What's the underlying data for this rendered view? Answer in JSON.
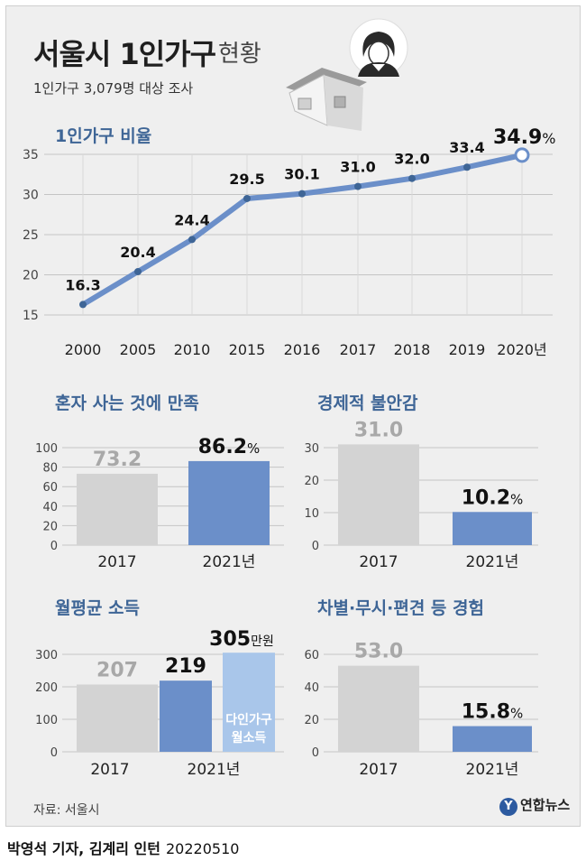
{
  "header": {
    "title_main": "서울시 1인가구",
    "title_sub": "현황",
    "survey_note": "1인가구 3,079명 대상 조사"
  },
  "illustration": {
    "icons": [
      "house-icon",
      "person-avatar-icon"
    ]
  },
  "colors": {
    "accent": "#6b8fc9",
    "light_accent": "#a9c6ea",
    "gray_bar": "#d3d3d3",
    "title_blue": "#3e6596"
  },
  "line_chart": {
    "title": "1인가구 비율",
    "last_label": "34.9",
    "last_unit": "%"
  },
  "footer": {
    "source": "자료: 서울시",
    "logo": "연합뉴스",
    "credit": "박영석 기자, 김계리 인턴",
    "date": "20220510"
  },
  "chart_data": [
    {
      "type": "line",
      "title": "1인가구 비율",
      "x": [
        "2000",
        "2005",
        "2010",
        "2015",
        "2016",
        "2017",
        "2018",
        "2019",
        "2020년"
      ],
      "series": [
        {
          "values": [
            16.3,
            20.4,
            24.4,
            29.5,
            30.1,
            31.0,
            32.0,
            33.4,
            34.9
          ]
        }
      ],
      "data_labels": [
        "16.3",
        "20.4",
        "24.4",
        "29.5",
        "30.1",
        "31.0",
        "32.0",
        "33.4",
        "34.9"
      ],
      "yticks": [
        15,
        20,
        25,
        30,
        35
      ],
      "ylim": [
        15,
        35
      ],
      "grid": true
    },
    {
      "type": "bar",
      "title": "혼자 사는 것에 만족",
      "categories": [
        "2017",
        "2021년"
      ],
      "values": [
        73.2,
        86.2
      ],
      "data_labels": [
        "73.2",
        "86.2"
      ],
      "unit": "%",
      "yticks": [
        0,
        20,
        40,
        60,
        80,
        100
      ],
      "ylim": [
        0,
        100
      ],
      "grid": true
    },
    {
      "type": "bar",
      "title": "경제적 불안감",
      "categories": [
        "2017",
        "2021년"
      ],
      "values": [
        31.0,
        10.2
      ],
      "data_labels": [
        "31.0",
        "10.2"
      ],
      "unit": "%",
      "yticks": [
        0,
        10,
        20,
        30
      ],
      "ylim": [
        0,
        30
      ],
      "grid": true
    },
    {
      "type": "bar",
      "title": "월평균 소득",
      "categories": [
        "2017",
        "2021년"
      ],
      "values": [
        207,
        219
      ],
      "data_labels": [
        "207",
        "219"
      ],
      "extra_bar": {
        "value": 305,
        "label": "305",
        "unit": "만원",
        "name_lines": [
          "다인가구",
          "월소득"
        ]
      },
      "yticks": [
        0,
        100,
        200,
        300
      ],
      "ylim": [
        0,
        300
      ],
      "grid": true
    },
    {
      "type": "bar",
      "title": "차별·무시·편견 등 경험",
      "categories": [
        "2017",
        "2021년"
      ],
      "values": [
        53.0,
        15.8
      ],
      "data_labels": [
        "53.0",
        "15.8"
      ],
      "unit": "%",
      "yticks": [
        0,
        20,
        40,
        60
      ],
      "ylim": [
        0,
        60
      ],
      "grid": true
    }
  ]
}
